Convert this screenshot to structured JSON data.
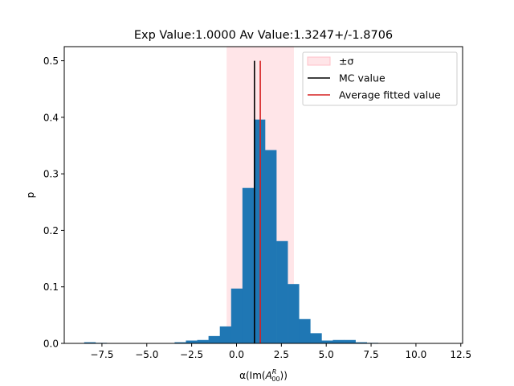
{
  "chart_data": {
    "type": "bar",
    "title": "Exp Value:1.0000 Av Value:1.3247+/-1.8706",
    "xlabel_prefix": "α(Im(",
    "xlabel_symbol": "A",
    "xlabel_sup": "R",
    "xlabel_sub": "00",
    "xlabel_suffix": "))",
    "ylabel": "p",
    "xlim": [
      -9.6,
      12.6
    ],
    "ylim": [
      0,
      0.525
    ],
    "xticks": [
      -7.5,
      -5.0,
      -2.5,
      0.0,
      2.5,
      5.0,
      7.5,
      10.0,
      12.5
    ],
    "xtick_labels": [
      "−7.5",
      "−5.0",
      "−2.5",
      "0.0",
      "2.5",
      "5.0",
      "7.5",
      "10.0",
      "12.5"
    ],
    "yticks": [
      0.0,
      0.1,
      0.2,
      0.3,
      0.4,
      0.5
    ],
    "ytick_labels": [
      "0.0",
      "0.1",
      "0.2",
      "0.3",
      "0.4",
      "0.5"
    ],
    "bin_width": 0.63,
    "histogram": {
      "bin_starts": [
        -8.49,
        -7.86,
        -7.23,
        -6.6,
        -5.97,
        -5.34,
        -4.71,
        -4.08,
        -3.45,
        -2.82,
        -2.19,
        -1.56,
        -0.93,
        -0.3,
        0.33,
        0.96,
        1.59,
        2.22,
        2.85,
        3.48,
        4.11,
        4.74,
        5.37,
        6.0,
        6.63,
        7.26
      ],
      "values": [
        0.002,
        0.001,
        0.0,
        0.0,
        0.0,
        0.0,
        0.0,
        0.0005,
        0.002,
        0.005,
        0.006,
        0.013,
        0.03,
        0.097,
        0.275,
        0.396,
        0.342,
        0.181,
        0.105,
        0.043,
        0.018,
        0.005,
        0.006,
        0.006,
        0.002,
        0.001
      ]
    },
    "sigma_band": {
      "x_min": -0.55,
      "x_max": 3.2,
      "color": "#ffc0c8",
      "alpha": 0.42
    },
    "mc_value": {
      "x": 1.0,
      "y_top": 0.5,
      "color": "#000000"
    },
    "average_fitted_value": {
      "x": 1.3247,
      "y_top": 0.5,
      "color": "#d62020"
    },
    "bar_color": "#1f77b4",
    "legend": {
      "position": "top-right",
      "entries": [
        {
          "label": "±σ",
          "kind": "patch"
        },
        {
          "label": "MC value",
          "kind": "line"
        },
        {
          "label": "Average fitted value",
          "kind": "line"
        }
      ]
    },
    "grid": false
  }
}
